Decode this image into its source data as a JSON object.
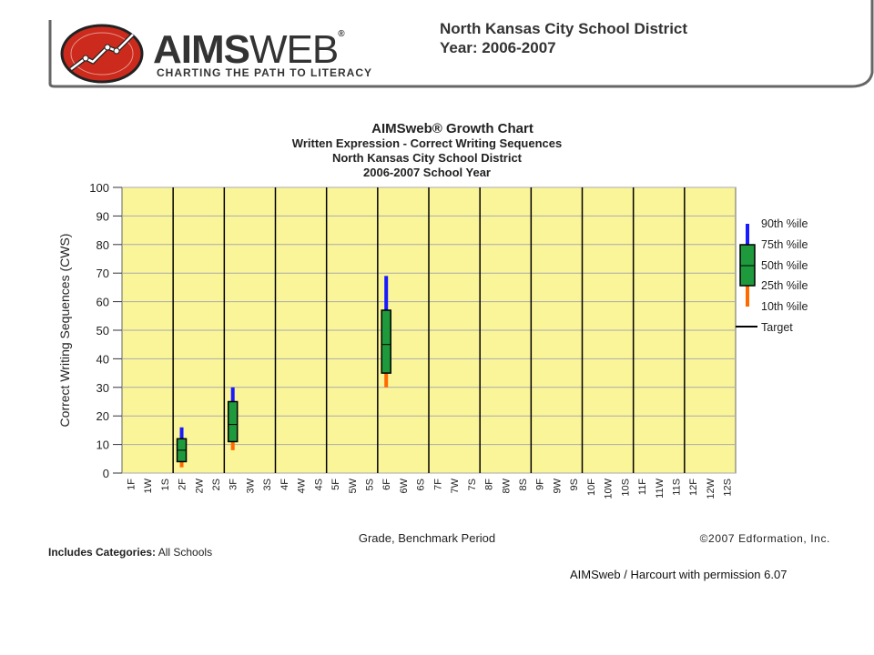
{
  "header": {
    "brand_bold": "AIMS",
    "brand_light": "WEB",
    "brand_reg": "®",
    "tagline": "CHARTING THE PATH TO LITERACY",
    "district": "North Kansas City School District",
    "year": "Year: 2006-2007"
  },
  "chart_data": {
    "type": "box",
    "title": "AIMSweb® Growth Chart",
    "subtitle_lines": [
      "Written Expression - Correct Writing Sequences",
      "North Kansas City School District",
      "2006-2007 School Year"
    ],
    "xlabel": "Grade, Benchmark Period",
    "ylabel": "Correct Writing Sequences (CWS)",
    "ylim": [
      0,
      100
    ],
    "yticks": [
      0,
      10,
      20,
      30,
      40,
      50,
      60,
      70,
      80,
      90,
      100
    ],
    "grid": true,
    "categories": [
      "1F",
      "1W",
      "1S",
      "2F",
      "2W",
      "2S",
      "3F",
      "3W",
      "3S",
      "4F",
      "4W",
      "4S",
      "5F",
      "5W",
      "5S",
      "6F",
      "6W",
      "6S",
      "7F",
      "7W",
      "7S",
      "8F",
      "8W",
      "8S",
      "9F",
      "9W",
      "9S",
      "10F",
      "10W",
      "10S",
      "11F",
      "11W",
      "11S",
      "12F",
      "12W",
      "12S"
    ],
    "boxes": [
      {
        "category": "2F",
        "p10": 2,
        "p25": 4,
        "p50": 8,
        "p75": 12,
        "p90": 16
      },
      {
        "category": "3F",
        "p10": 8,
        "p25": 11,
        "p50": 17,
        "p75": 25,
        "p90": 30
      },
      {
        "category": "6F",
        "p10": 30,
        "p25": 35,
        "p50": 45,
        "p75": 57,
        "p90": 69
      }
    ],
    "legend": {
      "placement": "right",
      "entries": [
        "90th %ile",
        "75th %ile",
        "50th %ile",
        "25th %ile",
        "10th %ile",
        "Target"
      ]
    },
    "copyright": "©2007 Edformation, Inc.",
    "colors": {
      "plot_bg": "#fbf59a",
      "upper_whisker": "#1a1aff",
      "lower_whisker": "#ff6a00",
      "box": "#1e9a3c"
    }
  },
  "footer": {
    "categories_label": "Includes Categories:",
    "categories_value": "All Schools",
    "credit": "AIMSweb / Harcourt with permission 6.07"
  }
}
